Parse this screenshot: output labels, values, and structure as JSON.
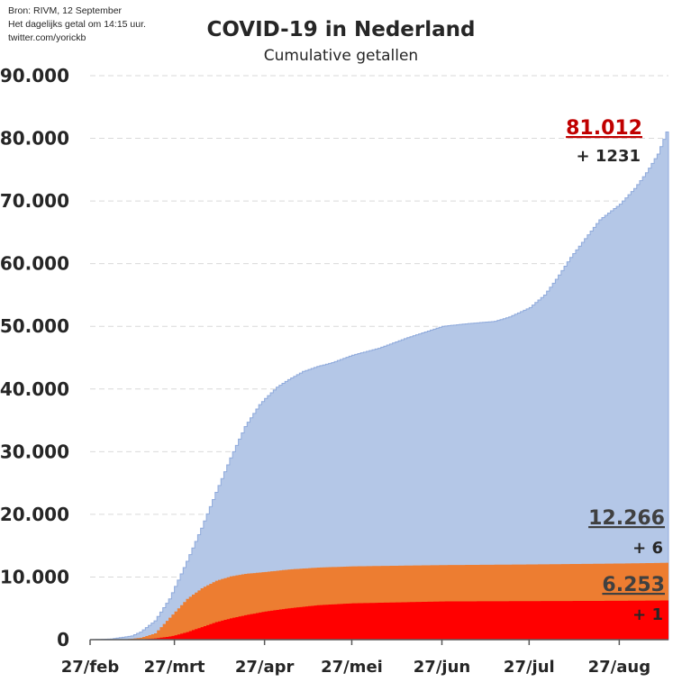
{
  "source": {
    "line1": "Bron: RIVM, 12 September",
    "line2": "Het dagelijks getal om 14:15 uur.",
    "line3": "twitter.com/yorickb"
  },
  "chart_data": {
    "type": "area",
    "title": "COVID-19 in Nederland",
    "subtitle": "Cumulative  getallen",
    "x_tick_labels": [
      "27/feb",
      "27/mrt",
      "27/apr",
      "27/mei",
      "27/jun",
      "27/jul",
      "27/aug"
    ],
    "x_range": [
      "2020-02-27",
      "2020-09-12"
    ],
    "ylim": [
      0,
      90000
    ],
    "y_ticks": [
      0,
      10000,
      20000,
      30000,
      40000,
      50000,
      60000,
      70000,
      80000,
      90000
    ],
    "y_tick_labels": [
      "0",
      "10.000",
      "20.000",
      "30.000",
      "40.000",
      "50.000",
      "60.000",
      "70.000",
      "80.000",
      "90.000"
    ],
    "grid": true,
    "series": [
      {
        "color": "#b4c7e7",
        "points": [
          [
            "2020-02-27",
            1
          ],
          [
            "2020-03-05",
            100
          ],
          [
            "2020-03-12",
            600
          ],
          [
            "2020-03-15",
            1200
          ],
          [
            "2020-03-20",
            3000
          ],
          [
            "2020-03-25",
            6500
          ],
          [
            "2020-03-27",
            8500
          ],
          [
            "2020-03-31",
            12500
          ],
          [
            "2020-04-05",
            17800
          ],
          [
            "2020-04-10",
            23500
          ],
          [
            "2020-04-15",
            29000
          ],
          [
            "2020-04-20",
            34000
          ],
          [
            "2020-04-25",
            37500
          ],
          [
            "2020-04-27",
            38500
          ],
          [
            "2020-05-01",
            40300
          ],
          [
            "2020-05-05",
            41500
          ],
          [
            "2020-05-10",
            42800
          ],
          [
            "2020-05-15",
            43600
          ],
          [
            "2020-05-20",
            44200
          ],
          [
            "2020-05-27",
            45400
          ],
          [
            "2020-06-05",
            46500
          ],
          [
            "2020-06-15",
            48200
          ],
          [
            "2020-06-27",
            50000
          ],
          [
            "2020-07-05",
            50400
          ],
          [
            "2020-07-15",
            50800
          ],
          [
            "2020-07-20",
            51500
          ],
          [
            "2020-07-27",
            53000
          ],
          [
            "2020-08-01",
            55000
          ],
          [
            "2020-08-05",
            57500
          ],
          [
            "2020-08-10",
            61000
          ],
          [
            "2020-08-15",
            64000
          ],
          [
            "2020-08-20",
            67000
          ],
          [
            "2020-08-27",
            69500
          ],
          [
            "2020-09-01",
            72000
          ],
          [
            "2020-09-05",
            74500
          ],
          [
            "2020-09-09",
            77500
          ],
          [
            "2020-09-12",
            81012
          ]
        ]
      },
      {
        "color": "#ed7d31",
        "points": [
          [
            "2020-02-27",
            0
          ],
          [
            "2020-03-10",
            50
          ],
          [
            "2020-03-15",
            300
          ],
          [
            "2020-03-20",
            1000
          ],
          [
            "2020-03-25",
            3500
          ],
          [
            "2020-03-27",
            4500
          ],
          [
            "2020-03-31",
            6500
          ],
          [
            "2020-04-05",
            8200
          ],
          [
            "2020-04-10",
            9400
          ],
          [
            "2020-04-15",
            10100
          ],
          [
            "2020-04-20",
            10500
          ],
          [
            "2020-04-27",
            10800
          ],
          [
            "2020-05-05",
            11200
          ],
          [
            "2020-05-15",
            11500
          ],
          [
            "2020-05-27",
            11700
          ],
          [
            "2020-06-27",
            11900
          ],
          [
            "2020-07-27",
            12000
          ],
          [
            "2020-08-27",
            12150
          ],
          [
            "2020-09-12",
            12266
          ]
        ]
      },
      {
        "color": "#ff0000",
        "points": [
          [
            "2020-02-27",
            0
          ],
          [
            "2020-03-10",
            10
          ],
          [
            "2020-03-15",
            50
          ],
          [
            "2020-03-20",
            200
          ],
          [
            "2020-03-25",
            500
          ],
          [
            "2020-03-27",
            700
          ],
          [
            "2020-03-31",
            1200
          ],
          [
            "2020-04-05",
            2000
          ],
          [
            "2020-04-10",
            2800
          ],
          [
            "2020-04-15",
            3400
          ],
          [
            "2020-04-20",
            3900
          ],
          [
            "2020-04-27",
            4500
          ],
          [
            "2020-05-05",
            5000
          ],
          [
            "2020-05-15",
            5500
          ],
          [
            "2020-05-27",
            5800
          ],
          [
            "2020-06-27",
            6100
          ],
          [
            "2020-07-27",
            6150
          ],
          [
            "2020-08-27",
            6200
          ],
          [
            "2020-09-12",
            6253
          ]
        ]
      }
    ],
    "annotations": [
      {
        "total": "81.012",
        "delta": "+ 1231",
        "color": "#c00000"
      },
      {
        "total": "12.266",
        "delta": "+ 6",
        "color": "#404040"
      },
      {
        "total": "6.253",
        "delta": "+ 1",
        "color": "#404040"
      }
    ]
  }
}
